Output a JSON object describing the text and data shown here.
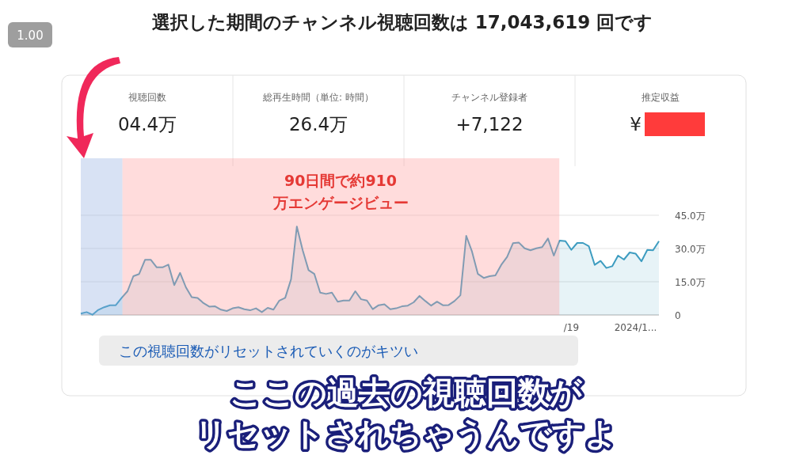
{
  "chart_data": {
    "type": "area",
    "title": "選択した期間のチャンネル視聴回数は 17,043,619 回です",
    "categories": [
      null,
      null,
      null,
      null,
      null,
      null,
      null,
      null,
      null,
      null,
      null,
      null,
      null,
      null,
      null,
      null,
      null,
      null,
      null,
      null,
      null,
      null,
      null,
      null,
      null,
      null,
      null,
      null,
      null,
      null,
      null,
      null,
      null,
      null,
      null,
      null,
      null,
      null,
      null,
      null,
      null,
      null,
      null,
      null,
      null,
      null,
      null,
      null,
      null,
      null,
      null,
      null,
      null,
      null,
      null,
      null,
      null,
      null,
      null,
      null,
      null,
      null,
      null,
      null,
      null,
      null,
      null,
      null,
      null,
      null,
      null,
      null,
      null,
      null,
      null,
      null,
      null,
      null,
      null,
      null,
      null,
      null,
      null,
      null,
      "/19",
      null,
      null,
      null,
      null,
      null,
      null,
      null,
      null,
      null,
      null,
      "2024/1...",
      null,
      null,
      null,
      null
    ],
    "values": [
      0.6,
      1.3,
      0.1,
      2.3,
      3.5,
      4.4,
      4.4,
      7.7,
      10.7,
      17.5,
      18.5,
      24.9,
      24.9,
      21.5,
      21.5,
      22.7,
      13.5,
      19.0,
      12.5,
      8.0,
      7.7,
      5.4,
      3.8,
      3.9,
      2.4,
      1.8,
      3.0,
      3.5,
      2.6,
      2.1,
      3.0,
      1.3,
      3.2,
      2.4,
      6.5,
      7.7,
      16.1,
      39.9,
      29.2,
      20.2,
      18.5,
      10.1,
      9.5,
      10.1,
      6.0,
      6.5,
      6.5,
      10.7,
      7.1,
      6.5,
      2.6,
      4.4,
      4.8,
      2.6,
      3.0,
      3.9,
      4.2,
      5.7,
      8.6,
      6.3,
      4.2,
      6.0,
      4.4,
      4.5,
      6.3,
      8.9,
      35.7,
      28.6,
      18.5,
      16.7,
      17.5,
      17.9,
      22.6,
      26.2,
      32.4,
      32.7,
      30.1,
      29.2,
      30.1,
      30.6,
      34.5,
      26.8,
      33.6,
      33.3,
      29.4,
      32.5,
      32.5,
      31.0,
      22.6,
      24.4,
      21.2,
      22.0,
      26.8,
      25.0,
      28.2,
      27.7,
      24.2,
      29.4,
      29.2,
      33.3
    ],
    "color": "#3d9cc0",
    "ylim": [
      0,
      45
    ],
    "yticks": [
      0,
      {
        "value": 15,
        "label": "15.0万"
      },
      {
        "value": 30,
        "label": "30.0万"
      },
      {
        "value": 45,
        "label": "45.0万"
      }
    ],
    "grid": "y",
    "annotations": [
      "1.00",
      "視聴回数",
      "04.4万",
      "総再生時間（単位: 時間）",
      "26.4万",
      "チャンネル登録者",
      "+7,122",
      "推定収益",
      "¥",
      "この視聴回数がリセットされていくのがキツい",
      "ここの過去の視聴回数が",
      "リセットされちゃうんですよ",
      "90日間で約910万エンゲージビュー"
    ]
  }
}
